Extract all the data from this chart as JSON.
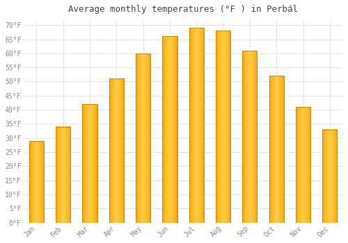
{
  "title": "Average monthly temperatures (°F ) in Perbál",
  "months": [
    "Jan",
    "Feb",
    "Mar",
    "Apr",
    "May",
    "Jun",
    "Jul",
    "Aug",
    "Sep",
    "Oct",
    "Nov",
    "Dec"
  ],
  "values": [
    29,
    34,
    42,
    51,
    60,
    66,
    69,
    68,
    61,
    52,
    41,
    33
  ],
  "bar_color_main": "#FFA500",
  "bar_color_light": "#FFD060",
  "bar_edge_color": "#CC8800",
  "background_color": "#FFFFFF",
  "grid_color": "#E0E0E0",
  "ylim": [
    0,
    72
  ],
  "yticks": [
    0,
    5,
    10,
    15,
    20,
    25,
    30,
    35,
    40,
    45,
    50,
    55,
    60,
    65,
    70
  ],
  "title_fontsize": 9,
  "tick_fontsize": 7,
  "title_color": "#444444",
  "tick_color": "#888888",
  "bar_width": 0.55
}
